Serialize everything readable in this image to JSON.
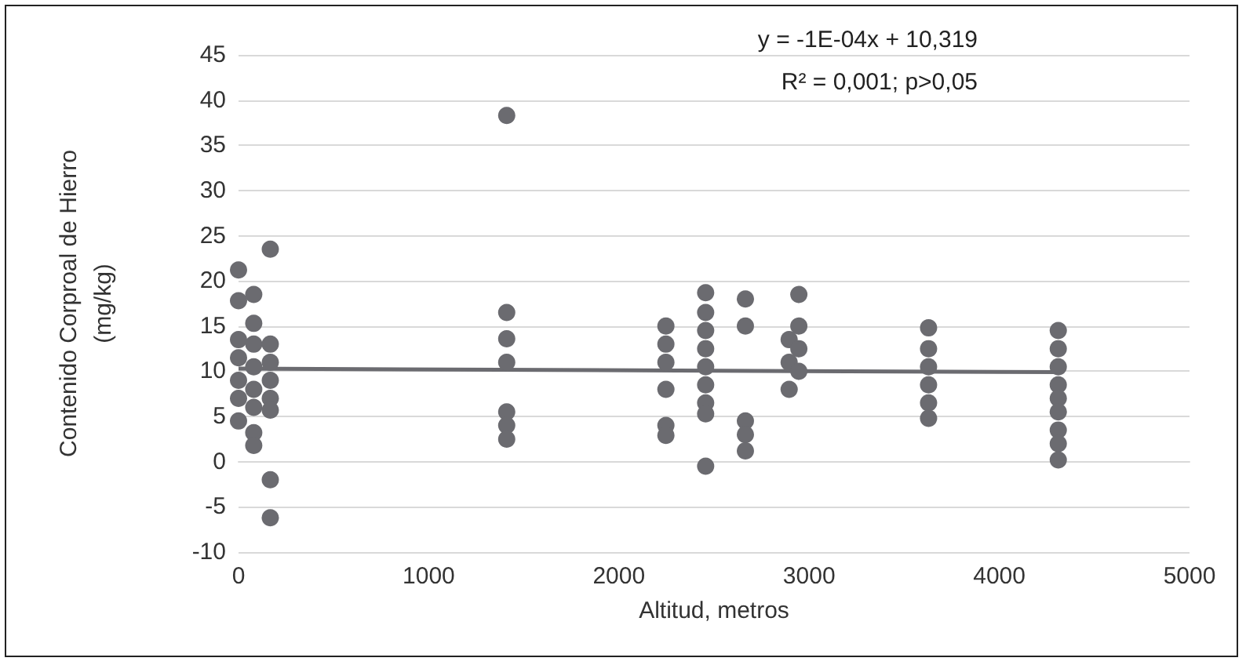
{
  "chart_data": {
    "type": "scatter",
    "xlabel": "Altitud, metros",
    "ylabel": "Contenido Corproal de Hierro\n(mg/kg)",
    "annotations": [
      "y = -1E-04x + 10,319",
      "R² = 0,001; p>0,05"
    ],
    "xlim": [
      0,
      5000
    ],
    "xticks": [
      0,
      1000,
      2000,
      3000,
      4000,
      5000
    ],
    "ylim": [
      -10,
      45
    ],
    "yticks": [
      -10,
      -5,
      0,
      5,
      10,
      15,
      20,
      25,
      30,
      35,
      40,
      45
    ],
    "grid": "y",
    "marker": "circle",
    "series": [
      {
        "color": "#6b6b70",
        "x": [
          0,
          0,
          0,
          0,
          0,
          0,
          0,
          80,
          80,
          80,
          80,
          80,
          80,
          80,
          80,
          167,
          167,
          167,
          167,
          167,
          167,
          167,
          167,
          1410,
          1410,
          1410,
          1410,
          1410,
          1410,
          1410,
          2247,
          2247,
          2247,
          2247,
          2247,
          2247,
          2456,
          2456,
          2456,
          2456,
          2456,
          2456,
          2456,
          2456,
          2456,
          2665,
          2665,
          2665,
          2665,
          2665,
          2895,
          2895,
          2895,
          2946,
          2946,
          2946,
          2946,
          3628,
          3628,
          3628,
          3628,
          3628,
          3628,
          4310,
          4310,
          4310,
          4310,
          4310,
          4310,
          4310,
          4310,
          4310
        ],
        "values": [
          21.2,
          17.8,
          13.5,
          11.5,
          9,
          7,
          4.5,
          18.5,
          15.3,
          13,
          10.5,
          8,
          6,
          3.2,
          1.8,
          23.5,
          13,
          11,
          9,
          7,
          5.7,
          -2,
          -6.2,
          38.3,
          16.5,
          13.6,
          11,
          5.5,
          4,
          2.5,
          15,
          13,
          11,
          8,
          4,
          2.9,
          18.7,
          16.5,
          14.5,
          12.5,
          10.5,
          8.5,
          6.5,
          5.3,
          -0.5,
          18,
          15,
          4.5,
          3,
          1.2,
          13.5,
          11,
          8,
          18.5,
          15,
          12.5,
          10,
          14.8,
          12.5,
          10.5,
          8.5,
          6.5,
          4.8,
          14.5,
          12.5,
          10.5,
          8.5,
          7,
          5.5,
          3.5,
          2,
          0.2
        ]
      },
      {
        "type": "line",
        "color": "#6b6b70",
        "marker": "none",
        "x": [
          0,
          4310
        ],
        "values": [
          10.3,
          9.9
        ]
      }
    ]
  }
}
